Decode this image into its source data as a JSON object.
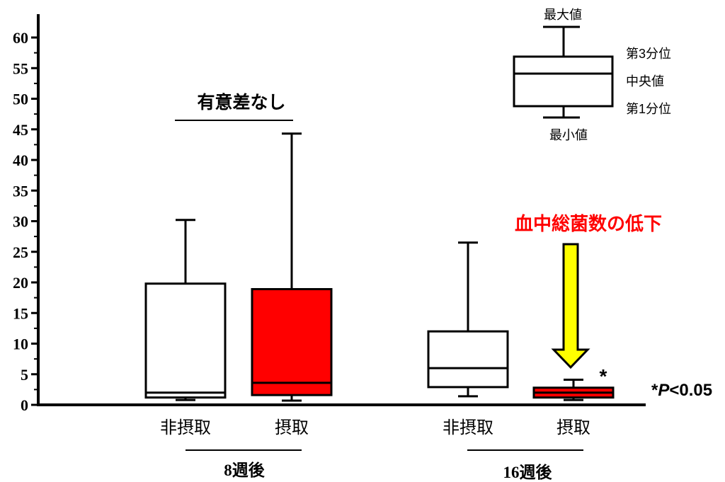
{
  "chart_data": {
    "type": "boxplot",
    "ylim": [
      0,
      60
    ],
    "y_ticks": [
      "0",
      "5",
      "10",
      "15",
      "20",
      "25",
      "30",
      "35",
      "40",
      "45",
      "50",
      "55",
      "60"
    ],
    "groups": [
      {
        "label": "8週後",
        "boxes": [
          {
            "name": "非摂取",
            "color": "#ffffff",
            "min": 0.8,
            "q1": 1.2,
            "median": 2.0,
            "q3": 19.8,
            "max": 30.2
          },
          {
            "name": "摂取",
            "color": "#ff0000",
            "min": 0.7,
            "q1": 1.6,
            "median": 3.6,
            "q3": 18.9,
            "max": 44.3
          }
        ],
        "annotation": "有意差なし"
      },
      {
        "label": "16週後",
        "boxes": [
          {
            "name": "非摂取",
            "color": "#ffffff",
            "min": 1.4,
            "q1": 2.9,
            "median": 6.0,
            "q3": 12.0,
            "max": 26.5
          },
          {
            "name": "摂取",
            "color": "#ff0000",
            "min": 0.8,
            "q1": 1.2,
            "median": 2.0,
            "q3": 2.8,
            "max": 4.1,
            "significance": "*"
          }
        ],
        "annotation": "血中総菌数の低下"
      }
    ],
    "legend_key": {
      "max": "最大値",
      "q3": "第3分位",
      "median": "中央値",
      "q1": "第1分位",
      "min": "最小値"
    },
    "significance_note": {
      "star": "*",
      "p": "P",
      "rest": "<0.05"
    },
    "colors": {
      "highlight_text": "#ff0000",
      "arrow_fill": "#ffff00",
      "taken_fill": "#ff0000"
    }
  }
}
